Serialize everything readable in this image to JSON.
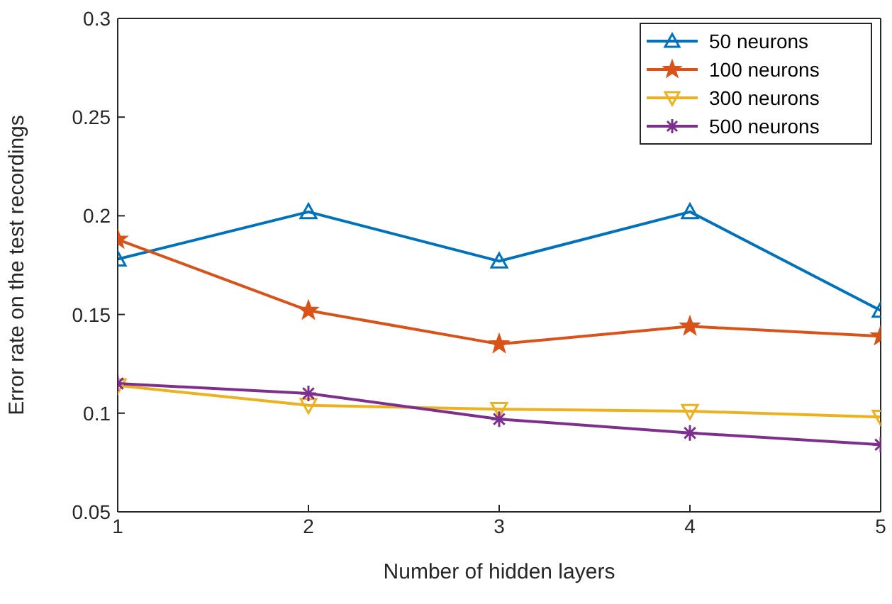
{
  "chart_data": {
    "type": "line",
    "xlabel": "Number of hidden layers",
    "ylabel": "Error rate on the test recordings",
    "x": [
      1,
      2,
      3,
      4,
      5
    ],
    "xlim": [
      1,
      5
    ],
    "xticks": [
      1,
      2,
      3,
      4,
      5
    ],
    "ylim": [
      0.05,
      0.3
    ],
    "yticks": [
      0.05,
      0.1,
      0.15,
      0.2,
      0.25,
      0.3
    ],
    "grid": false,
    "legend": "top right",
    "line_style": "solid",
    "series": [
      {
        "name": "50 neurons",
        "color": "#0072bd",
        "marker": "triangle",
        "values": [
          0.178,
          0.202,
          0.177,
          0.202,
          0.152
        ]
      },
      {
        "name": "100 neurons",
        "color": "#d95319",
        "marker": "star",
        "values": [
          0.188,
          0.152,
          0.135,
          0.144,
          0.139
        ]
      },
      {
        "name": "300 neurons",
        "color": "#edb120",
        "marker": "triangle-down",
        "values": [
          0.114,
          0.104,
          0.102,
          0.101,
          0.098
        ]
      },
      {
        "name": "500 neurons",
        "color": "#7e2f8e",
        "marker": "cross",
        "values": [
          0.115,
          0.11,
          0.097,
          0.09,
          0.084
        ]
      }
    ]
  }
}
